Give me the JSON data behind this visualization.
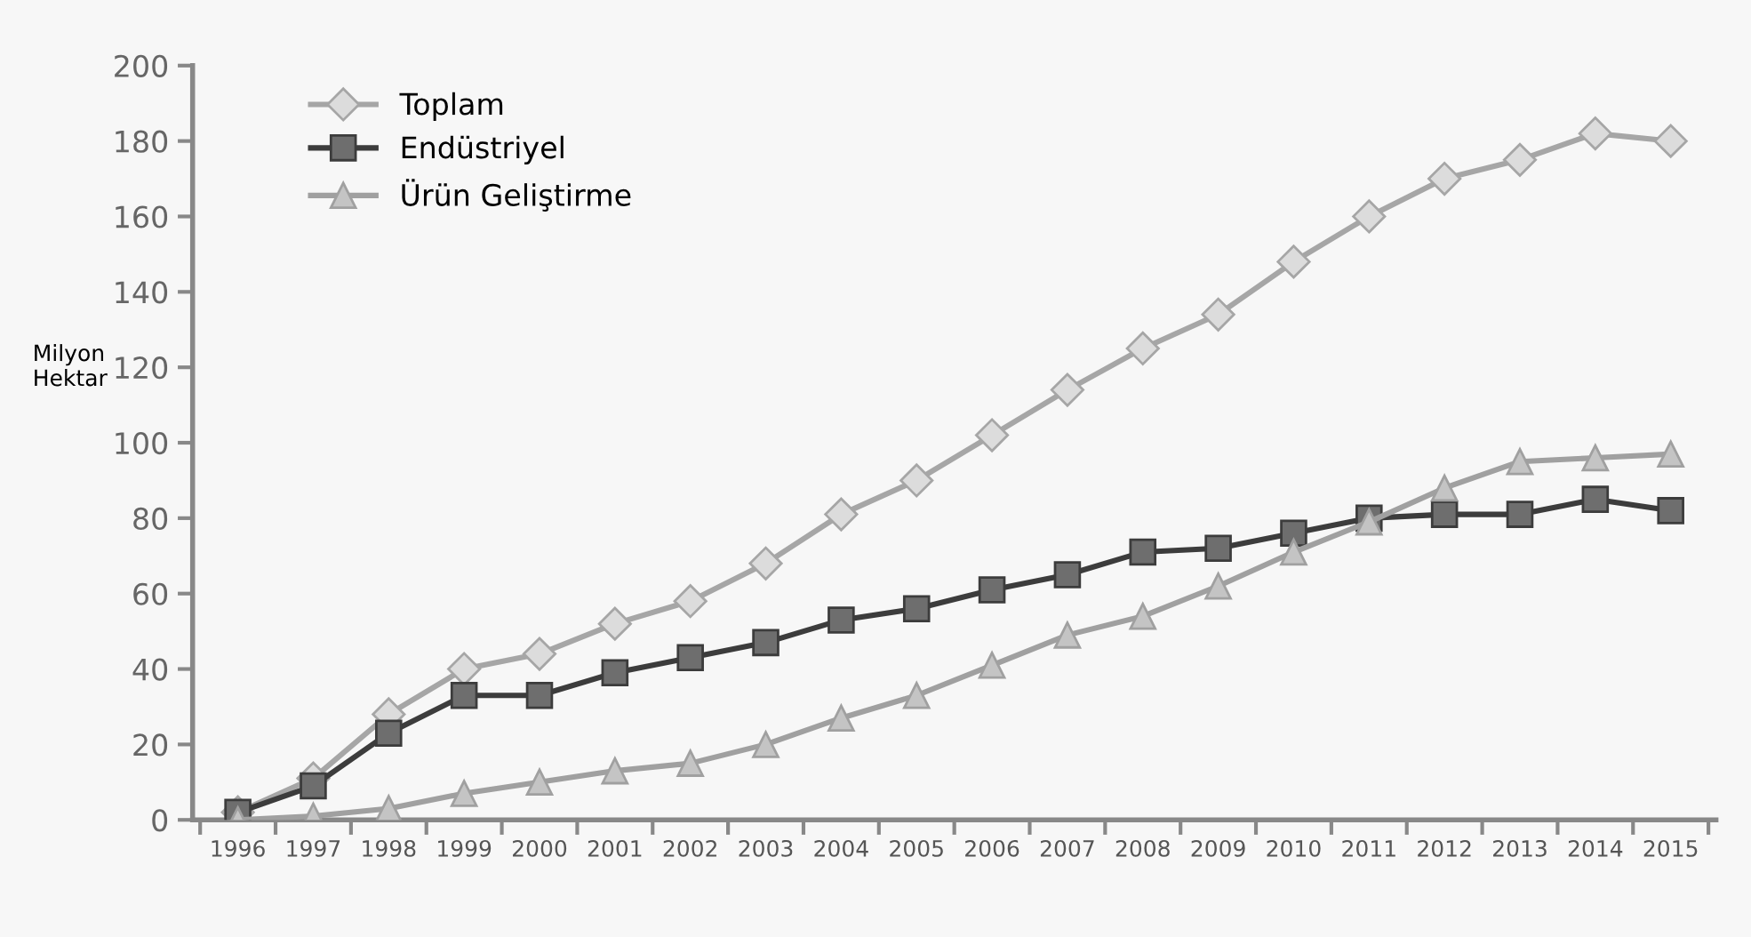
{
  "chart_data": {
    "type": "line",
    "ylabel": "Milyon\nHektar",
    "categories": [
      "1996",
      "1997",
      "1998",
      "1999",
      "2000",
      "2001",
      "2002",
      "2003",
      "2004",
      "2005",
      "2006",
      "2007",
      "2008",
      "2009",
      "2010",
      "2011",
      "2012",
      "2013",
      "2014",
      "2015"
    ],
    "series": [
      {
        "name": "Toplam",
        "color": "#a6a6a6",
        "marker": "diamond",
        "values": [
          2,
          11,
          28,
          40,
          44,
          52,
          58,
          68,
          81,
          90,
          102,
          114,
          125,
          134,
          148,
          160,
          170,
          175,
          182,
          180
        ]
      },
      {
        "name": "Endüstriyel",
        "color": "#3c3c3c",
        "marker": "square",
        "values": [
          2,
          9,
          23,
          33,
          33,
          39,
          43,
          47,
          53,
          56,
          61,
          65,
          71,
          72,
          76,
          80,
          81,
          81,
          85,
          82
        ]
      },
      {
        "name": "Ürün Geliştirme",
        "color": "#a0a0a0",
        "marker": "triangle",
        "values": [
          0,
          1,
          3,
          7,
          10,
          13,
          15,
          20,
          27,
          33,
          41,
          49,
          54,
          62,
          71,
          79,
          88,
          95,
          96,
          97
        ]
      }
    ],
    "ylim": [
      0,
      200
    ],
    "yticks": [
      0,
      20,
      40,
      60,
      80,
      100,
      120,
      140,
      160,
      180,
      200
    ],
    "grid": false,
    "legend": "top left",
    "line_style": "solid"
  }
}
